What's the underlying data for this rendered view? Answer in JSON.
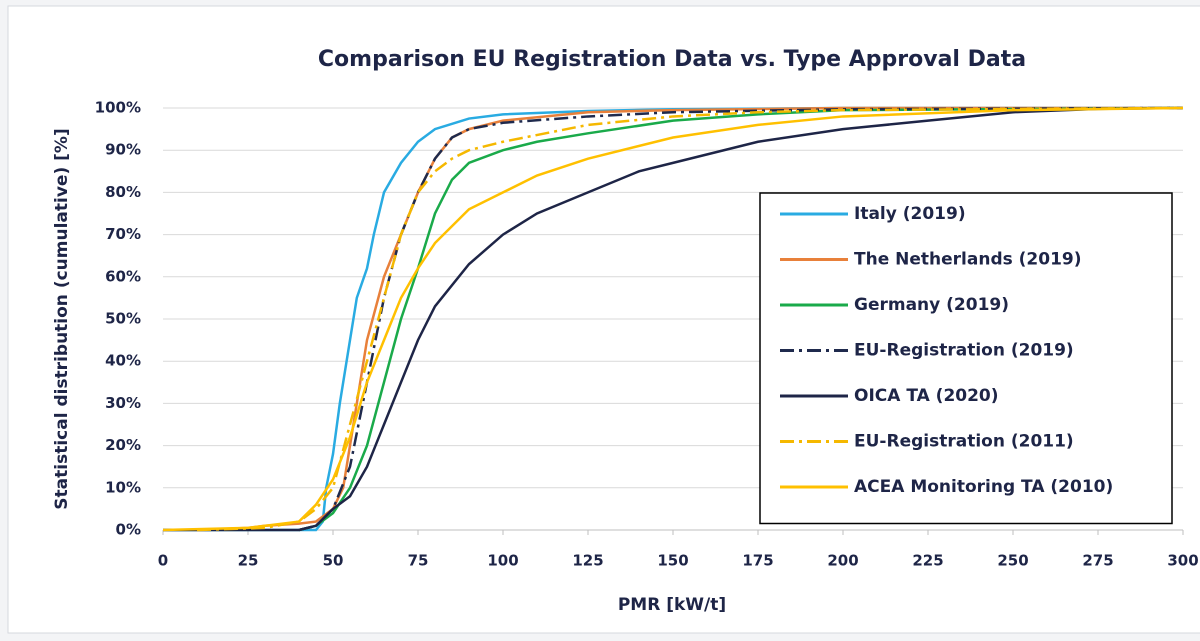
{
  "chart_data": {
    "type": "line",
    "title": "Comparison EU Registration Data vs. Type Approval Data",
    "x_label": "PMR [kW/t]",
    "y_label": "Statistical distribution (cumulative) [%]",
    "xlim": [
      0,
      300
    ],
    "xticks": [
      0,
      25,
      50,
      75,
      100,
      125,
      150,
      175,
      200,
      225,
      250,
      275,
      300
    ],
    "ylim": [
      0,
      100
    ],
    "yticks": [
      {
        "value": 0,
        "label": "0%"
      },
      {
        "value": 10,
        "label": "10%"
      },
      {
        "value": 20,
        "label": "20%"
      },
      {
        "value": 30,
        "label": "30%"
      },
      {
        "value": 40,
        "label": "40%"
      },
      {
        "value": 50,
        "label": "50%"
      },
      {
        "value": 60,
        "label": "60%"
      },
      {
        "value": 70,
        "label": "70%"
      },
      {
        "value": 80,
        "label": "80%"
      },
      {
        "value": 90,
        "label": "90%"
      },
      {
        "value": 100,
        "label": "100%"
      }
    ],
    "grid": true,
    "legend": "right",
    "series": [
      {
        "name": "Italy (2019)",
        "color": "#29abe2",
        "dash": "solid",
        "x": [
          0,
          45,
          47,
          48,
          50,
          52,
          55,
          57,
          60,
          62,
          65,
          70,
          75,
          80,
          90,
          100,
          125,
          150,
          200,
          300
        ],
        "values": [
          0,
          0,
          2,
          10,
          18,
          30,
          45,
          55,
          62,
          70,
          80,
          87,
          92,
          95,
          97.5,
          98.5,
          99.3,
          99.7,
          100,
          100
        ]
      },
      {
        "name": "The Netherlands (2019)",
        "color": "#e8803a",
        "dash": "solid",
        "x": [
          10,
          25,
          30,
          40,
          45,
          50,
          53,
          55,
          58,
          60,
          65,
          70,
          75,
          80,
          85,
          90,
          100,
          125,
          150,
          200,
          300
        ],
        "values": [
          0,
          0.5,
          1,
          1.5,
          2,
          5,
          10,
          20,
          35,
          45,
          60,
          70,
          80,
          88,
          93,
          95,
          97,
          99,
          99.5,
          100,
          100
        ]
      },
      {
        "name": "Germany (2019)",
        "color": "#1aaa4a",
        "dash": "solid",
        "x": [
          40,
          45,
          50,
          55,
          60,
          65,
          70,
          75,
          80,
          85,
          90,
          100,
          110,
          125,
          150,
          175,
          200,
          300
        ],
        "values": [
          0,
          1,
          4,
          10,
          20,
          35,
          50,
          62,
          75,
          83,
          87,
          90,
          92,
          94,
          97,
          98.5,
          99.5,
          100
        ]
      },
      {
        "name": "EU-Registration (2019)",
        "color": "#1f2a4d",
        "dash": "dashdot",
        "x": [
          40,
          45,
          50,
          55,
          60,
          65,
          70,
          75,
          80,
          85,
          90,
          100,
          125,
          150,
          200,
          300
        ],
        "values": [
          0,
          1,
          5,
          15,
          35,
          55,
          70,
          80,
          88,
          93,
          95,
          96.5,
          98,
          99,
          99.7,
          100
        ]
      },
      {
        "name": "OICA TA (2020)",
        "color": "#1e2547",
        "dash": "solid",
        "x": [
          0,
          40,
          45,
          50,
          55,
          60,
          65,
          70,
          75,
          80,
          90,
          100,
          110,
          125,
          140,
          150,
          175,
          200,
          225,
          250,
          275,
          300
        ],
        "values": [
          0,
          0,
          1,
          5,
          8,
          15,
          25,
          35,
          45,
          53,
          63,
          70,
          75,
          80,
          85,
          87,
          92,
          95,
          97,
          99,
          99.8,
          100
        ]
      },
      {
        "name": "EU-Registration (2011)",
        "color": "#f5b800",
        "dash": "dashdot",
        "x": [
          10,
          30,
          40,
          45,
          50,
          55,
          60,
          65,
          70,
          75,
          80,
          85,
          90,
          100,
          125,
          150,
          175,
          200,
          300
        ],
        "values": [
          0,
          0.5,
          2,
          5,
          10,
          25,
          40,
          55,
          70,
          80,
          85,
          88,
          90,
          92,
          96,
          98,
          99,
          99.5,
          100
        ]
      },
      {
        "name": "ACEA Monitoring TA (2010)",
        "color": "#ffc000",
        "dash": "solid",
        "x": [
          0,
          25,
          40,
          45,
          50,
          55,
          60,
          65,
          70,
          75,
          80,
          90,
          100,
          110,
          125,
          150,
          175,
          200,
          250,
          300
        ],
        "values": [
          0,
          0.5,
          2,
          6,
          12,
          22,
          35,
          45,
          55,
          62,
          68,
          76,
          80,
          84,
          88,
          93,
          96,
          98,
          99.5,
          100
        ]
      }
    ]
  }
}
